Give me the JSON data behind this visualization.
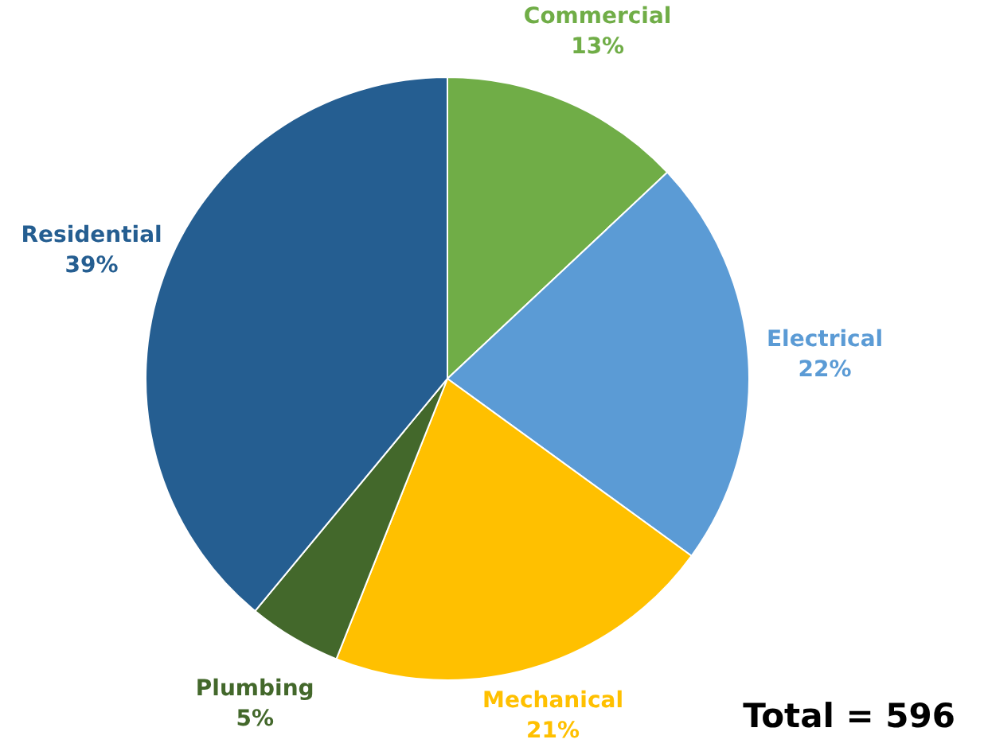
{
  "chart_data": {
    "type": "pie",
    "categories": [
      "Commercial",
      "Electrical",
      "Mechanical",
      "Plumbing",
      "Residential"
    ],
    "values": [
      13,
      22,
      21,
      5,
      39
    ],
    "colors": [
      "#70ad47",
      "#5b9bd5",
      "#ffc000",
      "#43682b",
      "#255e91"
    ],
    "value_labels": [
      "13%",
      "22%",
      "21%",
      "5%",
      "39%"
    ],
    "legend": false,
    "annotations": [
      "Total = 596"
    ]
  }
}
